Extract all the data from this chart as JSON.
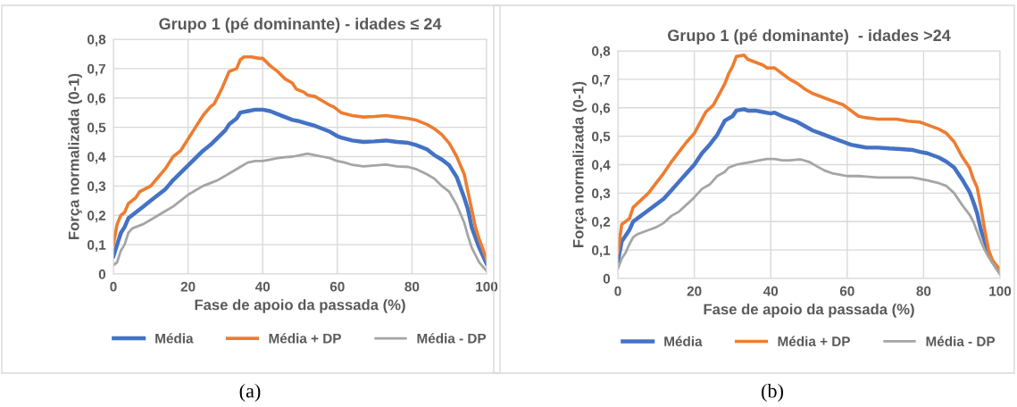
{
  "chart_data": [
    {
      "type": "line",
      "title": "Grupo 1 (pé dominante) - idades ≤ 24",
      "xlabel": "Fase de apoio da passada (%)",
      "ylabel": "Força normalizada (0-1)",
      "xlim": [
        0,
        100
      ],
      "xticks": [
        0,
        20,
        40,
        60,
        80,
        100
      ],
      "ylim": [
        0,
        0.8
      ],
      "yticks": [
        {
          "value": 0,
          "label": "0"
        },
        {
          "value": 0.1,
          "label": "0,1"
        },
        {
          "value": 0.2,
          "label": "0,2"
        },
        {
          "value": 0.3,
          "label": "0,3"
        },
        {
          "value": 0.4,
          "label": "0,4"
        },
        {
          "value": 0.5,
          "label": "0,5"
        },
        {
          "value": 0.6,
          "label": "0,6"
        },
        {
          "value": 0.7,
          "label": "0,7"
        },
        {
          "value": 0.8,
          "label": "0,8"
        }
      ],
      "grid": true,
      "legend": "bottom",
      "marker": "none",
      "line_style": "solid",
      "annotations": [
        "(a)"
      ],
      "series": [
        {
          "name": "Média",
          "color": "#4472c4",
          "x": [
            0,
            1,
            2,
            3,
            4,
            6,
            8,
            10,
            12,
            14,
            16,
            18,
            20,
            22,
            24,
            26,
            28,
            30,
            31,
            33,
            34,
            36,
            38,
            40,
            42,
            44,
            46,
            48,
            50,
            52,
            54,
            56,
            58,
            60,
            61,
            64,
            67,
            70,
            73,
            76,
            79,
            81,
            84,
            86,
            88,
            90,
            92,
            94,
            95,
            96,
            98,
            100
          ],
          "values": [
            0.06,
            0.1,
            0.14,
            0.16,
            0.19,
            0.21,
            0.23,
            0.25,
            0.27,
            0.29,
            0.32,
            0.345,
            0.37,
            0.395,
            0.42,
            0.44,
            0.465,
            0.49,
            0.51,
            0.53,
            0.55,
            0.555,
            0.56,
            0.56,
            0.555,
            0.545,
            0.535,
            0.525,
            0.52,
            0.512,
            0.505,
            0.495,
            0.485,
            0.47,
            0.465,
            0.455,
            0.45,
            0.452,
            0.455,
            0.45,
            0.447,
            0.44,
            0.425,
            0.405,
            0.39,
            0.37,
            0.33,
            0.26,
            0.22,
            0.16,
            0.09,
            0.035
          ]
        },
        {
          "name": "Média + DP",
          "color": "#ed7d31",
          "x": [
            0,
            1,
            2,
            3,
            4,
            6,
            7,
            10,
            12,
            14,
            16,
            18,
            20,
            22,
            24,
            26,
            27,
            29,
            31,
            33,
            34,
            35,
            37,
            39,
            40,
            42,
            44,
            46,
            48,
            49,
            51,
            52,
            54,
            56,
            58,
            59,
            61,
            64,
            67,
            70,
            73,
            76,
            79,
            81,
            84,
            86,
            88,
            90,
            92,
            94,
            95,
            96,
            97,
            98,
            100
          ],
          "values": [
            0.1,
            0.17,
            0.2,
            0.21,
            0.24,
            0.26,
            0.28,
            0.3,
            0.33,
            0.36,
            0.4,
            0.42,
            0.46,
            0.5,
            0.54,
            0.57,
            0.58,
            0.63,
            0.69,
            0.7,
            0.73,
            0.74,
            0.74,
            0.735,
            0.735,
            0.71,
            0.69,
            0.665,
            0.65,
            0.63,
            0.62,
            0.61,
            0.605,
            0.59,
            0.575,
            0.57,
            0.55,
            0.54,
            0.535,
            0.537,
            0.54,
            0.535,
            0.53,
            0.525,
            0.51,
            0.495,
            0.475,
            0.445,
            0.4,
            0.34,
            0.28,
            0.22,
            0.16,
            0.12,
            0.05
          ]
        },
        {
          "name": "Média - DP",
          "color": "#a5a5a5",
          "x": [
            0,
            1,
            2,
            3,
            4,
            5,
            6,
            8,
            10,
            12,
            14,
            16,
            18,
            20,
            22,
            24,
            26,
            28,
            30,
            32,
            34,
            36,
            38,
            40,
            42,
            44,
            46,
            48,
            50,
            52,
            54,
            56,
            58,
            60,
            62,
            64,
            67,
            70,
            73,
            76,
            79,
            81,
            84,
            86,
            88,
            90,
            92,
            94,
            95,
            96,
            98,
            100
          ],
          "values": [
            0.03,
            0.04,
            0.08,
            0.1,
            0.14,
            0.155,
            0.16,
            0.17,
            0.185,
            0.2,
            0.215,
            0.23,
            0.25,
            0.27,
            0.285,
            0.3,
            0.31,
            0.32,
            0.335,
            0.35,
            0.365,
            0.38,
            0.385,
            0.385,
            0.39,
            0.395,
            0.398,
            0.4,
            0.405,
            0.41,
            0.405,
            0.4,
            0.395,
            0.385,
            0.38,
            0.372,
            0.367,
            0.37,
            0.373,
            0.367,
            0.365,
            0.358,
            0.34,
            0.325,
            0.3,
            0.28,
            0.235,
            0.175,
            0.13,
            0.09,
            0.04,
            0.01
          ]
        }
      ]
    },
    {
      "type": "line",
      "title": "Grupo 1 (pé dominante)  - idades >24",
      "xlabel": "Fase de apoio da passada (%)",
      "ylabel": "Força normalizada (0-1)",
      "xlim": [
        0,
        100
      ],
      "xticks": [
        0,
        20,
        40,
        60,
        80,
        100
      ],
      "ylim": [
        0,
        0.8
      ],
      "yticks": [
        {
          "value": 0,
          "label": "0"
        },
        {
          "value": 0.1,
          "label": "0,1"
        },
        {
          "value": 0.2,
          "label": "0,2"
        },
        {
          "value": 0.3,
          "label": "0,3"
        },
        {
          "value": 0.4,
          "label": "0,4"
        },
        {
          "value": 0.5,
          "label": "0,5"
        },
        {
          "value": 0.6,
          "label": "0,6"
        },
        {
          "value": 0.7,
          "label": "0,7"
        },
        {
          "value": 0.8,
          "label": "0,8"
        }
      ],
      "grid": true,
      "legend": "bottom",
      "marker": "none",
      "line_style": "solid",
      "annotations": [
        "(b)"
      ],
      "series": [
        {
          "name": "Média",
          "color": "#4472c4",
          "x": [
            0,
            1,
            2,
            3,
            4,
            6,
            8,
            10,
            12,
            14,
            16,
            18,
            20,
            22,
            24,
            26,
            27,
            28,
            30,
            31,
            33,
            34,
            36,
            38,
            40,
            41,
            43,
            45,
            47,
            49,
            51,
            53,
            55,
            57,
            59,
            61,
            63,
            65,
            68,
            71,
            74,
            77,
            79,
            81,
            84,
            86,
            88,
            90,
            92,
            93,
            94,
            95,
            96,
            97,
            98,
            100
          ],
          "values": [
            0.06,
            0.13,
            0.15,
            0.17,
            0.2,
            0.22,
            0.24,
            0.26,
            0.28,
            0.31,
            0.34,
            0.37,
            0.4,
            0.44,
            0.47,
            0.505,
            0.53,
            0.555,
            0.57,
            0.59,
            0.595,
            0.59,
            0.59,
            0.585,
            0.58,
            0.583,
            0.57,
            0.56,
            0.55,
            0.535,
            0.52,
            0.51,
            0.5,
            0.49,
            0.48,
            0.47,
            0.465,
            0.46,
            0.46,
            0.457,
            0.455,
            0.452,
            0.445,
            0.44,
            0.425,
            0.41,
            0.39,
            0.35,
            0.305,
            0.27,
            0.23,
            0.17,
            0.13,
            0.09,
            0.06,
            0.02
          ]
        },
        {
          "name": "Média + DP",
          "color": "#ed7d31",
          "x": [
            0,
            1,
            2,
            3,
            4,
            6,
            8,
            10,
            12,
            14,
            16,
            18,
            20,
            21,
            23,
            25,
            27,
            28,
            29,
            30,
            31,
            33,
            34,
            36,
            38,
            39,
            41,
            43,
            45,
            47,
            49,
            51,
            53,
            55,
            57,
            59,
            61,
            63,
            65,
            68,
            70,
            73,
            76,
            79,
            81,
            84,
            86,
            88,
            90,
            92,
            93,
            94,
            95,
            96,
            97,
            98,
            100
          ],
          "values": [
            0.09,
            0.19,
            0.2,
            0.21,
            0.25,
            0.275,
            0.3,
            0.335,
            0.37,
            0.41,
            0.445,
            0.48,
            0.51,
            0.535,
            0.585,
            0.61,
            0.66,
            0.685,
            0.72,
            0.745,
            0.78,
            0.785,
            0.77,
            0.76,
            0.75,
            0.74,
            0.74,
            0.72,
            0.7,
            0.685,
            0.665,
            0.65,
            0.64,
            0.63,
            0.62,
            0.61,
            0.59,
            0.57,
            0.565,
            0.56,
            0.56,
            0.56,
            0.553,
            0.55,
            0.54,
            0.525,
            0.51,
            0.48,
            0.43,
            0.39,
            0.35,
            0.32,
            0.25,
            0.17,
            0.1,
            0.065,
            0.03
          ]
        },
        {
          "name": "Média - DP",
          "color": "#a5a5a5",
          "x": [
            0,
            1,
            2,
            3,
            4,
            5,
            6,
            8,
            10,
            12,
            14,
            16,
            18,
            20,
            22,
            24,
            26,
            28,
            29,
            31,
            33,
            35,
            37,
            39,
            41,
            43,
            45,
            47,
            48,
            50,
            52,
            54,
            56,
            58,
            60,
            63,
            65,
            68,
            71,
            75,
            77,
            79,
            81,
            84,
            86,
            88,
            90,
            92,
            93,
            94,
            95,
            96,
            97,
            98,
            100
          ],
          "values": [
            0.035,
            0.07,
            0.09,
            0.12,
            0.145,
            0.155,
            0.16,
            0.17,
            0.18,
            0.195,
            0.22,
            0.235,
            0.26,
            0.285,
            0.315,
            0.33,
            0.36,
            0.375,
            0.39,
            0.4,
            0.405,
            0.41,
            0.415,
            0.42,
            0.42,
            0.415,
            0.415,
            0.418,
            0.418,
            0.41,
            0.395,
            0.38,
            0.37,
            0.365,
            0.36,
            0.36,
            0.358,
            0.355,
            0.355,
            0.355,
            0.355,
            0.35,
            0.345,
            0.335,
            0.325,
            0.3,
            0.26,
            0.225,
            0.2,
            0.165,
            0.13,
            0.1,
            0.075,
            0.055,
            0.015
          ]
        }
      ]
    }
  ]
}
